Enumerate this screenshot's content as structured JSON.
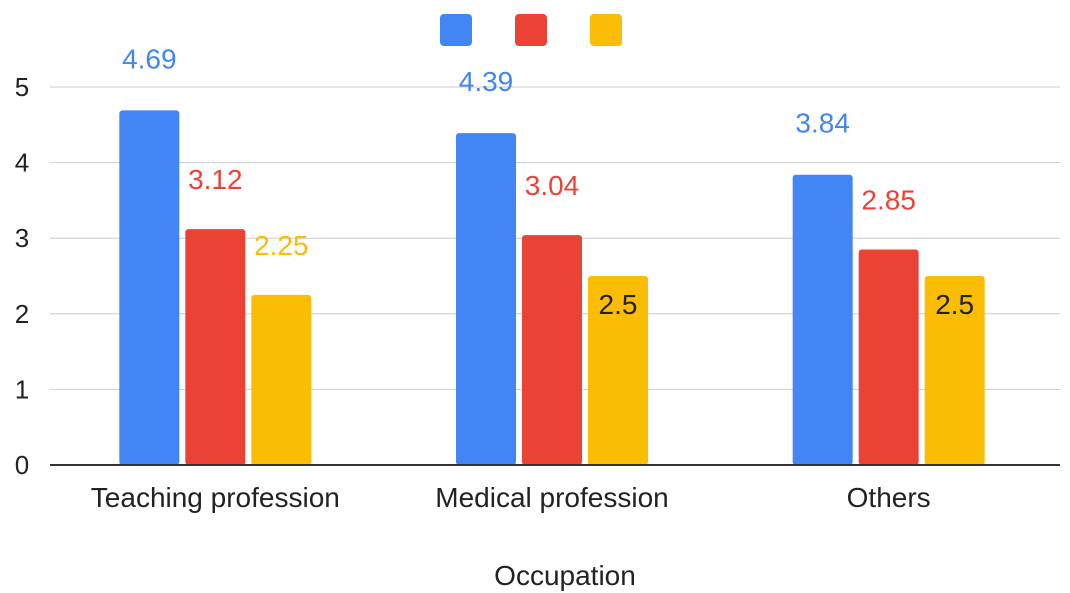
{
  "chart_data": {
    "type": "bar",
    "title": "",
    "xlabel": "Occupation",
    "ylabel": "",
    "categories": [
      "Teaching profession",
      "Medical profession",
      "Others"
    ],
    "series": [
      {
        "values": [
          4.69,
          4.39,
          3.84
        ],
        "labels": [
          "4.69",
          "4.39",
          "3.84"
        ],
        "color": "#4285F4",
        "label_color": "#4285F4"
      },
      {
        "values": [
          3.12,
          3.04,
          2.85
        ],
        "labels": [
          "3.12",
          "3.04",
          "2.85"
        ],
        "color": "#EA4335",
        "label_color": "#EA4335"
      },
      {
        "values": [
          2.25,
          2.5,
          2.5
        ],
        "labels": [
          "2.25",
          "2.5",
          "2.5"
        ],
        "color": "#FBBC04",
        "label_color": [
          "#FBBC04",
          "#222222",
          "#222222"
        ]
      }
    ],
    "ylim": [
      0,
      5
    ],
    "yticks": [
      "0",
      "1",
      "2",
      "3",
      "4",
      "5"
    ],
    "grid": true,
    "legend": "top-center"
  }
}
